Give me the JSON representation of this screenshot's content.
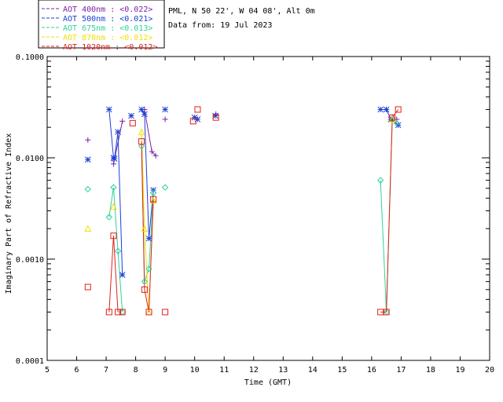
{
  "chart_data": {
    "type": "scatter",
    "xlabel": "Time (GMT)",
    "ylabel": "Imaginary Part of Refractive Index",
    "y_scale": "log",
    "xlim": [
      5,
      20
    ],
    "ylim": [
      0.0001,
      0.1
    ],
    "x_ticks": [
      "5",
      "6",
      "7",
      "8",
      "9",
      "10",
      "11",
      "12",
      "13",
      "14",
      "15",
      "16",
      "17",
      "18",
      "19",
      "20"
    ],
    "y_ticks": [
      {
        "value": 0.1,
        "label": "0.1000"
      },
      {
        "value": 0.01,
        "label": "0.0100"
      },
      {
        "value": 0.001,
        "label": "0.0010"
      },
      {
        "value": 0.0001,
        "label": "0.0001"
      }
    ],
    "info_lines": [
      "PML, N 50 22', W 04 08', Alt 0m",
      "Data from: 19 Jul 2023"
    ],
    "series": [
      {
        "name": "AOT  400nm : <0.022>",
        "color": "#7a1fa8",
        "marker": "plus",
        "points": [
          [
            6.38,
            0.015
          ],
          [
            7.25,
            0.0087
          ],
          [
            7.55,
            0.023
          ],
          [
            8.3,
            0.03
          ],
          [
            8.55,
            0.0115
          ],
          [
            8.68,
            0.0105
          ],
          [
            9.0,
            0.024
          ],
          [
            10.72,
            0.027
          ],
          [
            16.5,
            0.03
          ],
          [
            16.7,
            0.025
          ],
          [
            16.85,
            0.024
          ]
        ],
        "segments": [
          [
            1,
            2
          ],
          [
            3,
            4
          ],
          [
            4,
            5
          ]
        ]
      },
      {
        "name": "AOT  500nm : <0.021>",
        "color": "#1c3fd6",
        "marker": "star",
        "points": [
          [
            6.38,
            0.0096
          ],
          [
            7.1,
            0.03
          ],
          [
            7.25,
            0.01
          ],
          [
            7.28,
            0.0098
          ],
          [
            7.4,
            0.018
          ],
          [
            7.55,
            0.0007
          ],
          [
            7.85,
            0.026
          ],
          [
            8.2,
            0.03
          ],
          [
            8.3,
            0.027
          ],
          [
            8.45,
            0.0016
          ],
          [
            8.6,
            0.0048
          ],
          [
            9.0,
            0.03
          ],
          [
            10.0,
            0.025
          ],
          [
            10.1,
            0.024
          ],
          [
            10.7,
            0.026
          ],
          [
            16.3,
            0.03
          ],
          [
            16.5,
            0.03
          ],
          [
            16.65,
            0.024
          ],
          [
            16.9,
            0.021
          ]
        ],
        "segments": [
          [
            1,
            2
          ],
          [
            2,
            3
          ],
          [
            3,
            4
          ],
          [
            4,
            5
          ],
          [
            7,
            8
          ],
          [
            8,
            9
          ],
          [
            9,
            10
          ],
          [
            15,
            16
          ],
          [
            16,
            17
          ],
          [
            17,
            18
          ]
        ]
      },
      {
        "name": "AOT  675nm : <0.013>",
        "color": "#2fd19a",
        "marker": "diamond",
        "points": [
          [
            6.38,
            0.0049
          ],
          [
            7.1,
            0.0026
          ],
          [
            7.25,
            0.0051
          ],
          [
            7.4,
            0.0012
          ],
          [
            7.55,
            0.0003
          ],
          [
            8.2,
            0.013
          ],
          [
            8.3,
            0.0006
          ],
          [
            8.45,
            0.0008
          ],
          [
            8.6,
            0.0045
          ],
          [
            9.0,
            0.0051
          ],
          [
            16.3,
            0.006
          ],
          [
            16.5,
            0.0003
          ],
          [
            16.7,
            0.024
          ],
          [
            16.85,
            0.022
          ]
        ],
        "segments": [
          [
            1,
            2
          ],
          [
            2,
            3
          ],
          [
            3,
            4
          ],
          [
            5,
            6
          ],
          [
            6,
            7
          ],
          [
            7,
            8
          ],
          [
            10,
            11
          ],
          [
            11,
            12
          ],
          [
            12,
            13
          ]
        ]
      },
      {
        "name": "AOT  870nm : <0.012>",
        "color": "#f0e000",
        "marker": "triangle",
        "points": [
          [
            6.38,
            0.002
          ],
          [
            7.25,
            0.0033
          ],
          [
            8.2,
            0.018
          ],
          [
            8.3,
            0.002
          ],
          [
            8.45,
            0.0003
          ],
          [
            8.6,
            0.0038
          ],
          [
            16.7,
            0.024
          ]
        ],
        "segments": [
          [
            2,
            3
          ],
          [
            3,
            4
          ],
          [
            4,
            5
          ]
        ]
      },
      {
        "name": "AOT 1020nm : <0.012>",
        "color": "#e0201a",
        "marker": "square",
        "points": [
          [
            6.38,
            0.00053
          ],
          [
            7.1,
            0.0003
          ],
          [
            7.25,
            0.0017
          ],
          [
            7.4,
            0.0003
          ],
          [
            7.55,
            0.0003
          ],
          [
            7.9,
            0.022
          ],
          [
            8.2,
            0.0145
          ],
          [
            8.3,
            0.0005
          ],
          [
            8.45,
            0.0003
          ],
          [
            8.6,
            0.0039
          ],
          [
            9.0,
            0.0003
          ],
          [
            9.95,
            0.023
          ],
          [
            10.1,
            0.03
          ],
          [
            10.72,
            0.025
          ],
          [
            16.3,
            0.0003
          ],
          [
            16.5,
            0.0003
          ],
          [
            16.7,
            0.025
          ],
          [
            16.9,
            0.03
          ]
        ],
        "segments": [
          [
            1,
            2
          ],
          [
            2,
            3
          ],
          [
            6,
            7
          ],
          [
            7,
            8
          ],
          [
            8,
            9
          ],
          [
            14,
            15
          ],
          [
            15,
            16
          ],
          [
            16,
            17
          ]
        ]
      }
    ]
  }
}
